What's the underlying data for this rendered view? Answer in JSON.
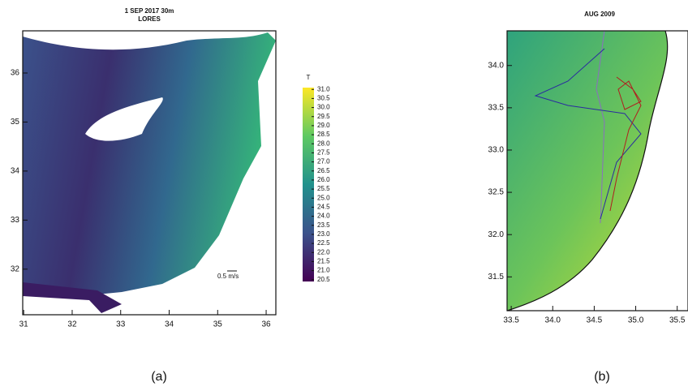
{
  "panels": [
    {
      "title": "1 SEP 2017 30m",
      "subtitle": "LORES",
      "xlim": [
        30.98,
        36.2
      ],
      "ylim": [
        31.07,
        36.86
      ],
      "xticks": [
        31,
        32,
        33,
        34,
        35,
        36
      ],
      "yticks": [
        32,
        33,
        34,
        35,
        36
      ],
      "colorbar": {
        "title": "T",
        "lim": [
          20.4,
          31.1
        ],
        "ticks": [
          {
            "value": 31.0,
            "label": "31.0"
          },
          30.5,
          {
            "value": 30.0,
            "label": "30.0"
          },
          29.5,
          {
            "value": 29.0,
            "label": "29.0"
          },
          28.5,
          {
            "value": 28.0,
            "label": "28.0"
          },
          27.5,
          {
            "value": 27.0,
            "label": "27.0"
          },
          26.5,
          {
            "value": 26.0,
            "label": "26.0"
          },
          25.5,
          {
            "value": 25.0,
            "label": "25.0"
          },
          24.5,
          {
            "value": 24.0,
            "label": "24.0"
          },
          23.5,
          {
            "value": 23.0,
            "label": "23.0"
          },
          22.5,
          {
            "value": 22.0,
            "label": "22.0"
          },
          21.5,
          {
            "value": 21.0,
            "label": "21.0"
          },
          20.5
        ]
      },
      "annotation": "0.5 m/s",
      "caption": "(a)"
    },
    {
      "title": "AUG 2009",
      "xlim": [
        33.45,
        35.63
      ],
      "ylim": [
        31.1,
        34.41
      ],
      "xticks": [
        33.5,
        {
          "value": 34.0,
          "label": "34.0"
        },
        34.5,
        {
          "value": 35.0,
          "label": "35.0"
        },
        35.5
      ],
      "yticks": [
        31.5,
        {
          "value": 32.0,
          "label": "32.0"
        },
        32.5,
        {
          "value": 33.0,
          "label": "33.0"
        },
        33.5,
        {
          "value": 34.0,
          "label": "34.0"
        }
      ],
      "caption": "(b)"
    }
  ]
}
